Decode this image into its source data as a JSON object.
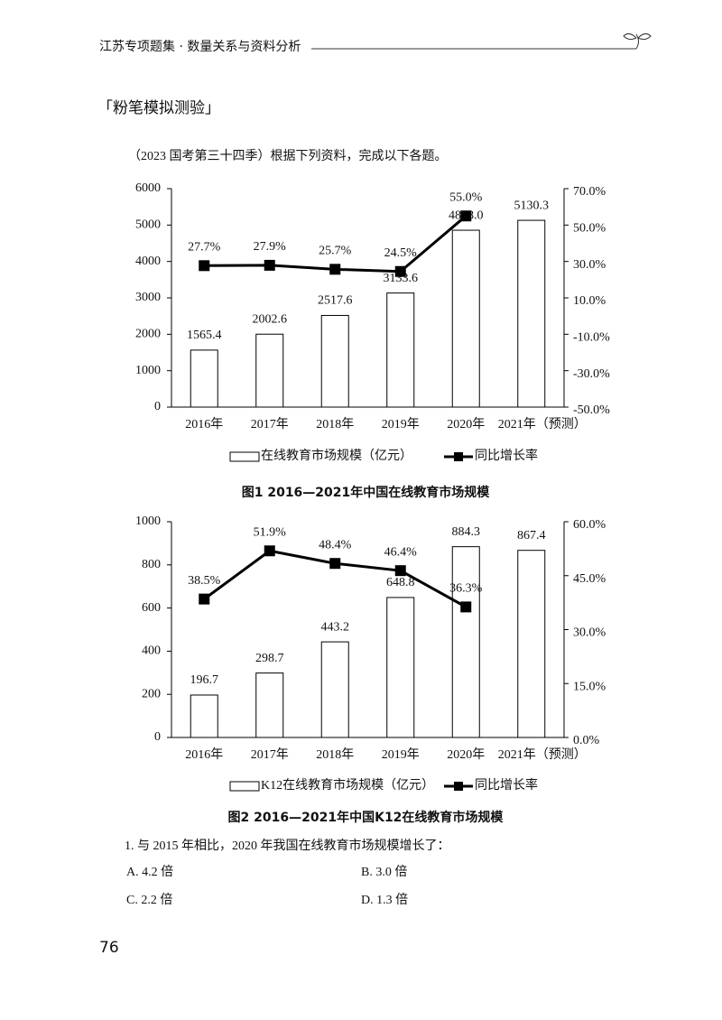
{
  "header": {
    "title": "江苏专项题集 · 数量关系与资料分析"
  },
  "section_title": "「粉笔模拟测验」",
  "intro": "（2023 国考第三十四季）根据下列资料，完成以下各题。",
  "chart_data": [
    {
      "type": "bar",
      "title": "图1  2016—2021年中国在线教育市场规模",
      "categories": [
        "2016年",
        "2017年",
        "2018年",
        "2019年",
        "2020年",
        "2021年（预测）"
      ],
      "series": [
        {
          "name": "在线教育市场规模（亿元）",
          "type": "bar",
          "color": "#ffffff",
          "values": [
            1565.4,
            2002.6,
            2517.6,
            3133.6,
            4858,
            5130.3
          ],
          "value_labels": [
            "1565.4",
            "2002.6",
            "2517.6",
            "3133.6",
            "4858.0",
            "5130.3"
          ]
        },
        {
          "name": "同比增长率",
          "type": "line",
          "axis": "y2",
          "color": "#000000",
          "values": [
            27.7,
            27.9,
            25.7,
            24.5,
            55,
            null
          ],
          "value_labels": [
            "27.7%",
            "27.9%",
            "25.7%",
            "24.5%",
            "55.0%",
            null
          ]
        }
      ],
      "ylim": [
        0,
        6000
      ],
      "yticks": [
        0,
        1000,
        2000,
        3000,
        4000,
        5000,
        6000
      ],
      "y2lim": [
        -50,
        70
      ],
      "y2ticks": [
        {
          "value": -50,
          "label": "-50.0%"
        },
        {
          "value": -30,
          "label": "-30.0%"
        },
        {
          "value": -10,
          "label": "-10.0%"
        },
        {
          "value": 10,
          "label": "10.0%"
        },
        {
          "value": 30,
          "label": "30.0%"
        },
        {
          "value": 50,
          "label": "50.0%"
        },
        {
          "value": 70,
          "label": "70.0%"
        }
      ]
    },
    {
      "type": "bar",
      "title": "图2  2016—2021年中国K12在线教育市场规模",
      "categories": [
        "2016年",
        "2017年",
        "2018年",
        "2019年",
        "2020年",
        "2021年（预测）"
      ],
      "series": [
        {
          "name": "K12在线教育市场规模（亿元）",
          "type": "bar",
          "color": "#ffffff",
          "values": [
            196.7,
            298.7,
            443.2,
            648.8,
            884.3,
            867.4
          ]
        },
        {
          "name": "同比增长率",
          "type": "line",
          "axis": "y2",
          "color": "#000000",
          "values": [
            38.5,
            51.9,
            48.4,
            46.4,
            36.3,
            null
          ],
          "value_labels": [
            "38.5%",
            "51.9%",
            "48.4%",
            "46.4%",
            "36.3%",
            null
          ]
        }
      ],
      "ylim": [
        0,
        1000
      ],
      "yticks": [
        0,
        200,
        400,
        600,
        800,
        1000
      ],
      "y2lim": [
        0,
        60
      ],
      "y2ticks": [
        {
          "value": 0,
          "label": "0.0%"
        },
        {
          "value": 15,
          "label": "15.0%"
        },
        {
          "value": 30,
          "label": "30.0%"
        },
        {
          "value": 45,
          "label": "45.0%"
        },
        {
          "value": 60,
          "label": "60.0%"
        }
      ]
    }
  ],
  "question": {
    "stem": "1. 与 2015 年相比，2020 年我国在线教育市场规模增长了：",
    "options": [
      "A. 4.2 倍",
      "B. 3.0 倍",
      "C. 2.2 倍",
      "D. 1.3 倍"
    ]
  },
  "page_number": "76"
}
